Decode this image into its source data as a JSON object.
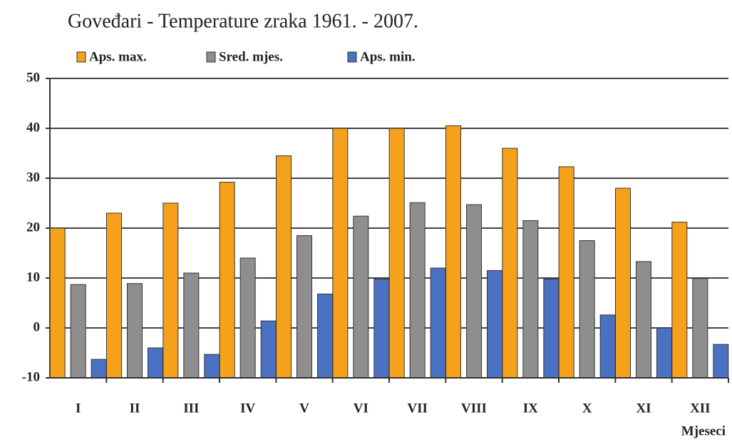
{
  "chart_data": {
    "type": "bar",
    "title": "Goveđari - Temperature zraka 1961. - 2007.",
    "x_label": "Mjeseci",
    "categories": [
      "I",
      "II",
      "III",
      "IV",
      "V",
      "VI",
      "VII",
      "VIII",
      "IX",
      "X",
      "XI",
      "XII"
    ],
    "series": [
      {
        "name": "Aps. max.",
        "color": "#f5a11c",
        "values": [
          20,
          23,
          25,
          29.2,
          34.5,
          40,
          40,
          40.5,
          36,
          32.3,
          28,
          21.2
        ]
      },
      {
        "name": "Sred. mjes.",
        "color": "#8e8e8e",
        "values": [
          8.7,
          8.9,
          11,
          14,
          18.5,
          22.4,
          25.1,
          24.7,
          21.5,
          17.5,
          13.3,
          9.9
        ]
      },
      {
        "name": "Aps. min.",
        "color": "#4b72c2",
        "values": [
          -6.3,
          -4,
          -5.3,
          1.4,
          6.8,
          9.8,
          12,
          11.5,
          9.8,
          2.6,
          0,
          -3.3
        ]
      }
    ],
    "ylim": [
      -10,
      50
    ],
    "yticks": [
      -10,
      0,
      10,
      20,
      30,
      40,
      50
    ],
    "grid": true
  }
}
